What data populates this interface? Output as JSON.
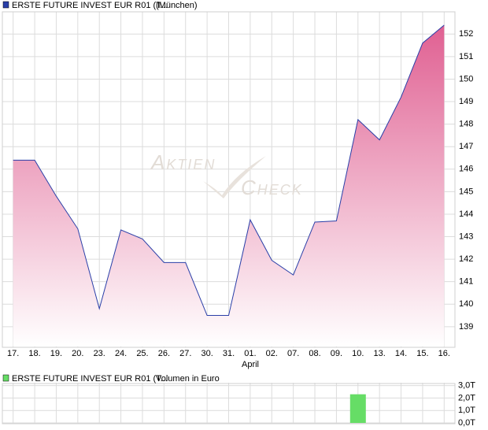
{
  "chart_data": [
    {
      "type": "area",
      "series": [
        {
          "name": "ERSTE FUTURE INVEST EUR R01 (T...",
          "color": "#2a3fa8",
          "values": [
            146.4,
            146.4,
            144.8,
            143.35,
            139.8,
            143.3,
            142.9,
            141.85,
            141.85,
            139.5,
            139.5,
            143.75,
            141.95,
            141.3,
            143.65,
            143.7,
            148.2,
            147.3,
            149.2,
            151.6,
            152.4
          ]
        }
      ],
      "subtitle": "(München)",
      "categories": [
        "17.",
        "18.",
        "19.",
        "20.",
        "23.",
        "24.",
        "25.",
        "26.",
        "27.",
        "30.",
        "31.",
        "01.",
        "02.",
        "07.",
        "08.",
        "09.",
        "10.",
        "13.",
        "14.",
        "15.",
        "16."
      ],
      "xlabel": "April",
      "watermark": [
        "Aktien",
        "Check"
      ],
      "fill_color": "#e06092",
      "ylim": [
        138.12,
        152.92
      ],
      "yticks": [
        139,
        140,
        141,
        142,
        143,
        144,
        145,
        146,
        147,
        148,
        149,
        150,
        151,
        152
      ],
      "grid": true
    },
    {
      "type": "bar",
      "series": [
        {
          "name": "ERSTE FUTURE INVEST EUR R01 (T...",
          "color": "#66dd66",
          "values": [
            0,
            0,
            0,
            0,
            0,
            0,
            0,
            0,
            0,
            0,
            0,
            0,
            0,
            0,
            0,
            0,
            2.3,
            0,
            0,
            0,
            0
          ]
        }
      ],
      "subtitle": "Volumen in Euro",
      "ylim": [
        0,
        3.1
      ],
      "yticks": [
        {
          "value": 0,
          "label": "0,0T"
        },
        {
          "value": 1,
          "label": "1,0T"
        },
        {
          "value": 2,
          "label": "2,0T"
        },
        {
          "value": 3,
          "label": "3,0T"
        }
      ],
      "grid": true
    }
  ]
}
